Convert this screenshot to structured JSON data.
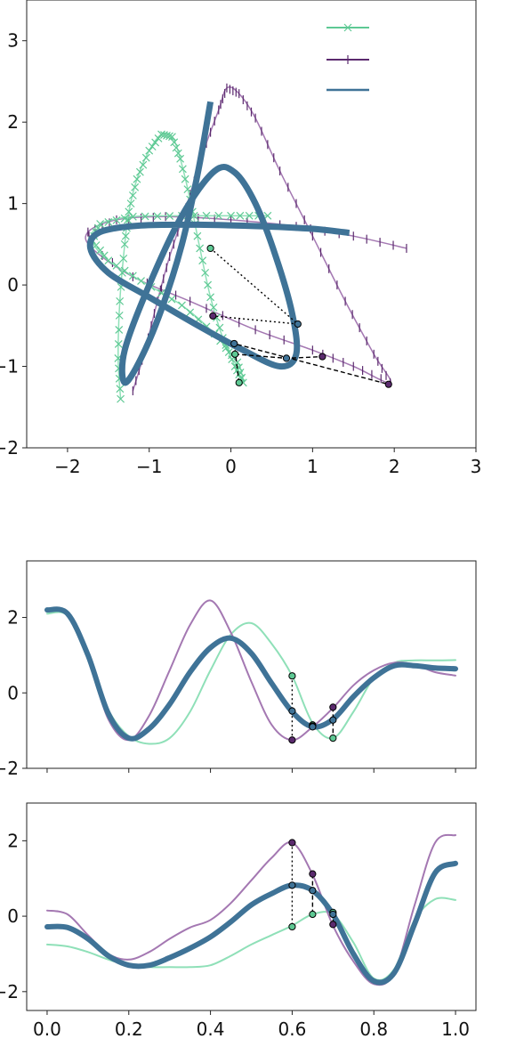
{
  "colors": {
    "series_a": "#5ec994",
    "series_b": "#5b2a6e",
    "series_c": "#3f7397",
    "accent_light": "#8fe0b8",
    "accent_purple": "#a478b2"
  },
  "legend": {
    "placement": "top-right",
    "entries": [
      {
        "marker": "x",
        "label": ""
      },
      {
        "marker": "|",
        "label": ""
      },
      {
        "marker": "",
        "label": ""
      }
    ]
  },
  "chart_data": [
    {
      "type": "line",
      "panel": "trajectory",
      "xlim": [
        -2.5,
        3
      ],
      "ylim": [
        -2,
        3.5
      ],
      "x_ticks": [
        "−2",
        "−1",
        "0",
        "1",
        "2",
        "3"
      ],
      "x_tick_values": [
        -2,
        -1,
        0,
        1,
        2,
        3
      ],
      "y_ticks": [
        "−2",
        "−1",
        "0",
        "1",
        "2",
        "3"
      ],
      "y_tick_values": [
        -2,
        -1,
        0,
        1,
        2,
        3
      ],
      "grid": false,
      "series": [
        {
          "marker": "x",
          "points": [
            [
              -1.35,
              -1.4
            ],
            [
              -1.38,
              -0.9
            ],
            [
              -1.36,
              -0.2
            ],
            [
              -1.3,
              0.5
            ],
            [
              -1.25,
              0.9
            ],
            [
              -1.15,
              1.3
            ],
            [
              -1.0,
              1.65
            ],
            [
              -0.85,
              1.85
            ],
            [
              -0.72,
              1.82
            ],
            [
              -0.62,
              1.55
            ],
            [
              -0.5,
              1.05
            ],
            [
              -0.38,
              0.45
            ],
            [
              -0.25,
              -0.15
            ],
            [
              -0.1,
              -0.65
            ],
            [
              0.05,
              -1.0
            ],
            [
              0.15,
              -1.2
            ],
            [
              0.08,
              -0.95
            ],
            [
              -0.2,
              -0.6
            ],
            [
              -0.6,
              -0.25
            ],
            [
              -1.1,
              0.05
            ],
            [
              -1.5,
              0.3
            ],
            [
              -1.7,
              0.55
            ],
            [
              -1.6,
              0.75
            ],
            [
              -1.2,
              0.84
            ],
            [
              -0.6,
              0.85
            ],
            [
              0.0,
              0.85
            ],
            [
              0.45,
              0.85
            ]
          ]
        },
        {
          "marker": "|",
          "points": [
            [
              -1.2,
              -1.3
            ],
            [
              -1.05,
              -0.8
            ],
            [
              -0.9,
              -0.2
            ],
            [
              -0.75,
              0.35
            ],
            [
              -0.55,
              0.95
            ],
            [
              -0.35,
              1.6
            ],
            [
              -0.15,
              2.15
            ],
            [
              -0.05,
              2.42
            ],
            [
              0.1,
              2.35
            ],
            [
              0.3,
              2.05
            ],
            [
              0.6,
              1.4
            ],
            [
              1.0,
              0.6
            ],
            [
              1.4,
              -0.2
            ],
            [
              1.75,
              -0.85
            ],
            [
              1.95,
              -1.2
            ],
            [
              1.5,
              -1.0
            ],
            [
              1.0,
              -0.8
            ],
            [
              0.3,
              -0.55
            ],
            [
              -0.5,
              -0.2
            ],
            [
              -1.2,
              0.1
            ],
            [
              -1.7,
              0.45
            ],
            [
              -1.75,
              0.65
            ],
            [
              -1.4,
              0.8
            ],
            [
              -0.8,
              0.84
            ],
            [
              0.0,
              0.8
            ],
            [
              0.8,
              0.72
            ],
            [
              1.5,
              0.6
            ],
            [
              2.15,
              0.45
            ]
          ]
        },
        {
          "marker": "",
          "points": [
            [
              -0.25,
              2.25
            ],
            [
              -0.4,
              1.4
            ],
            [
              -0.6,
              0.5
            ],
            [
              -0.85,
              -0.3
            ],
            [
              -1.1,
              -0.9
            ],
            [
              -1.3,
              -1.2
            ],
            [
              -1.3,
              -0.8
            ],
            [
              -1.0,
              0.0
            ],
            [
              -0.6,
              0.85
            ],
            [
              -0.2,
              1.4
            ],
            [
              0.05,
              1.38
            ],
            [
              0.3,
              1.0
            ],
            [
              0.55,
              0.35
            ],
            [
              0.75,
              -0.35
            ],
            [
              0.8,
              -0.85
            ],
            [
              0.6,
              -1.0
            ],
            [
              0.15,
              -0.8
            ],
            [
              -0.4,
              -0.5
            ],
            [
              -1.0,
              -0.15
            ],
            [
              -1.5,
              0.15
            ],
            [
              -1.72,
              0.45
            ],
            [
              -1.6,
              0.65
            ],
            [
              -1.1,
              0.73
            ],
            [
              -0.4,
              0.74
            ],
            [
              0.4,
              0.72
            ],
            [
              1.0,
              0.69
            ],
            [
              1.45,
              0.64
            ]
          ]
        }
      ],
      "markers_a": [
        [
          -0.25,
          0.45
        ],
        [
          0.05,
          -0.85
        ],
        [
          0.1,
          -1.2
        ]
      ],
      "markers_b": [
        [
          -0.22,
          -0.38
        ],
        [
          1.12,
          -0.88
        ],
        [
          1.93,
          -1.22
        ]
      ],
      "markers_c": [
        [
          0.82,
          -0.48
        ],
        [
          0.68,
          -0.9
        ],
        [
          0.04,
          -0.72
        ]
      ]
    },
    {
      "type": "line",
      "panel": "coordinate-1",
      "xlim": [
        -0.05,
        1.05
      ],
      "ylim": [
        -2,
        3.5
      ],
      "y_ticks": [
        "−2",
        "0",
        "2"
      ],
      "y_tick_values": [
        -2,
        0,
        2
      ],
      "series": [
        {
          "x": [
            0,
            0.05,
            0.1,
            0.15,
            0.2,
            0.25,
            0.3,
            0.35,
            0.4,
            0.45,
            0.5,
            0.55,
            0.6,
            0.65,
            0.7,
            0.75,
            0.8,
            0.85,
            0.9,
            0.95,
            1.0
          ],
          "values": [
            2.1,
            2.05,
            1.0,
            -0.45,
            -1.15,
            -1.35,
            -1.2,
            -0.5,
            0.6,
            1.55,
            1.85,
            1.3,
            0.45,
            -0.8,
            -1.2,
            -0.5,
            0.4,
            0.8,
            0.86,
            0.86,
            0.87
          ]
        },
        {
          "x": [
            0,
            0.05,
            0.1,
            0.15,
            0.2,
            0.25,
            0.3,
            0.35,
            0.4,
            0.45,
            0.5,
            0.55,
            0.6,
            0.65,
            0.7,
            0.75,
            0.8,
            0.85,
            0.9,
            0.95,
            1.0
          ],
          "values": [
            2.2,
            2.1,
            0.9,
            -0.7,
            -1.25,
            -0.6,
            0.6,
            1.8,
            2.45,
            1.6,
            0.3,
            -0.85,
            -1.25,
            -0.9,
            -0.4,
            0.2,
            0.6,
            0.8,
            0.75,
            0.55,
            0.46
          ]
        },
        {
          "x": [
            0,
            0.05,
            0.1,
            0.15,
            0.2,
            0.25,
            0.3,
            0.35,
            0.4,
            0.45,
            0.5,
            0.55,
            0.6,
            0.65,
            0.7,
            0.75,
            0.8,
            0.85,
            0.9,
            0.95,
            1.0
          ],
          "values": [
            2.2,
            2.1,
            1.0,
            -0.55,
            -1.2,
            -0.95,
            -0.3,
            0.55,
            1.2,
            1.45,
            1.05,
            0.25,
            -0.5,
            -0.9,
            -0.7,
            -0.1,
            0.4,
            0.72,
            0.72,
            0.66,
            0.64
          ]
        }
      ],
      "markers_a": [
        [
          0.6,
          0.45
        ],
        [
          0.65,
          -0.85
        ],
        [
          0.7,
          -1.2
        ]
      ],
      "markers_b": [
        [
          0.6,
          -1.25
        ],
        [
          0.65,
          -0.88
        ],
        [
          0.7,
          -0.38
        ]
      ],
      "markers_c": [
        [
          0.6,
          -0.48
        ],
        [
          0.65,
          -0.9
        ],
        [
          0.7,
          -0.72
        ]
      ]
    },
    {
      "type": "line",
      "panel": "coordinate-2",
      "xlim": [
        -0.05,
        1.05
      ],
      "ylim": [
        -2.5,
        3.0
      ],
      "x_ticks": [
        "0.0",
        "0.2",
        "0.4",
        "0.6",
        "0.8",
        "1.0"
      ],
      "x_tick_values": [
        0.0,
        0.2,
        0.4,
        0.6,
        0.8,
        1.0
      ],
      "y_ticks": [
        "−2",
        "0",
        "2"
      ],
      "y_tick_values": [
        -2,
        0,
        2
      ],
      "series": [
        {
          "x": [
            0,
            0.05,
            0.1,
            0.15,
            0.2,
            0.25,
            0.3,
            0.35,
            0.4,
            0.45,
            0.5,
            0.55,
            0.6,
            0.65,
            0.7,
            0.75,
            0.8,
            0.85,
            0.9,
            0.95,
            1.0
          ],
          "values": [
            -0.75,
            -0.8,
            -0.95,
            -1.15,
            -1.3,
            -1.35,
            -1.35,
            -1.35,
            -1.3,
            -1.05,
            -0.75,
            -0.5,
            -0.25,
            0.05,
            0.05,
            -0.7,
            -1.65,
            -1.4,
            -0.1,
            0.45,
            0.43
          ]
        },
        {
          "x": [
            0,
            0.05,
            0.1,
            0.15,
            0.2,
            0.25,
            0.3,
            0.35,
            0.4,
            0.45,
            0.5,
            0.55,
            0.6,
            0.65,
            0.7,
            0.75,
            0.8,
            0.85,
            0.9,
            0.95,
            1.0
          ],
          "values": [
            0.15,
            0.05,
            -0.5,
            -1.0,
            -1.15,
            -0.95,
            -0.6,
            -0.3,
            -0.1,
            0.35,
            0.95,
            1.55,
            1.95,
            1.1,
            -0.25,
            -1.2,
            -1.8,
            -1.5,
            0.3,
            1.95,
            2.15
          ]
        },
        {
          "x": [
            0,
            0.05,
            0.1,
            0.15,
            0.2,
            0.25,
            0.3,
            0.35,
            0.4,
            0.45,
            0.5,
            0.55,
            0.6,
            0.65,
            0.7,
            0.75,
            0.8,
            0.85,
            0.9,
            0.95,
            1.0
          ],
          "values": [
            -0.28,
            -0.3,
            -0.6,
            -1.05,
            -1.3,
            -1.3,
            -1.1,
            -0.85,
            -0.55,
            -0.15,
            0.3,
            0.6,
            0.82,
            0.68,
            0.05,
            -1.0,
            -1.72,
            -1.5,
            -0.2,
            1.15,
            1.4
          ]
        }
      ],
      "markers_a": [
        [
          0.6,
          -0.28
        ],
        [
          0.65,
          0.05
        ],
        [
          0.7,
          0.1
        ]
      ],
      "markers_b": [
        [
          0.6,
          1.95
        ],
        [
          0.65,
          1.12
        ],
        [
          0.7,
          -0.22
        ]
      ],
      "markers_c": [
        [
          0.6,
          0.82
        ],
        [
          0.65,
          0.68
        ],
        [
          0.7,
          0.05
        ]
      ]
    }
  ]
}
